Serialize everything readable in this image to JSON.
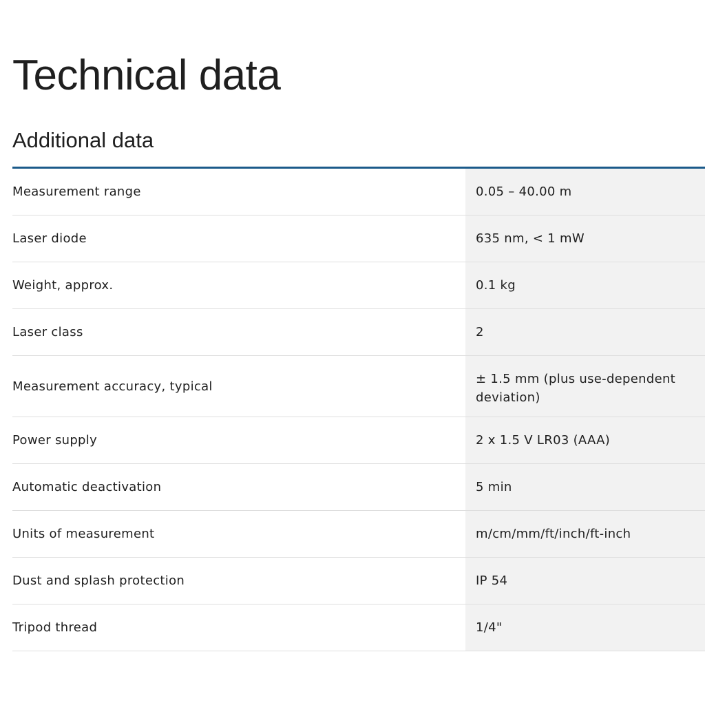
{
  "page_title": "Technical data",
  "section_title": "Additional data",
  "rows": [
    {
      "label": "Measurement range",
      "value": "0.05 – 40.00 m"
    },
    {
      "label": "Laser diode",
      "value": "635 nm, < 1 mW"
    },
    {
      "label": "Weight, approx.",
      "value": "0.1 kg"
    },
    {
      "label": "Laser class",
      "value": "2"
    },
    {
      "label": "Measurement accuracy, typical",
      "value": "± 1.5 mm (plus use-dependent deviation)"
    },
    {
      "label": "Power supply",
      "value": "2 x 1.5 V LR03 (AAA)"
    },
    {
      "label": "Automatic deactivation",
      "value": "5 min"
    },
    {
      "label": "Units of measurement",
      "value": "m/cm/mm/ft/inch/ft-inch"
    },
    {
      "label": "Dust and splash protection",
      "value": "IP 54"
    },
    {
      "label": "Tripod thread",
      "value": "1/4\""
    }
  ],
  "colors": {
    "accent": "#1b5a8a",
    "value_bg": "#f2f2f2"
  }
}
